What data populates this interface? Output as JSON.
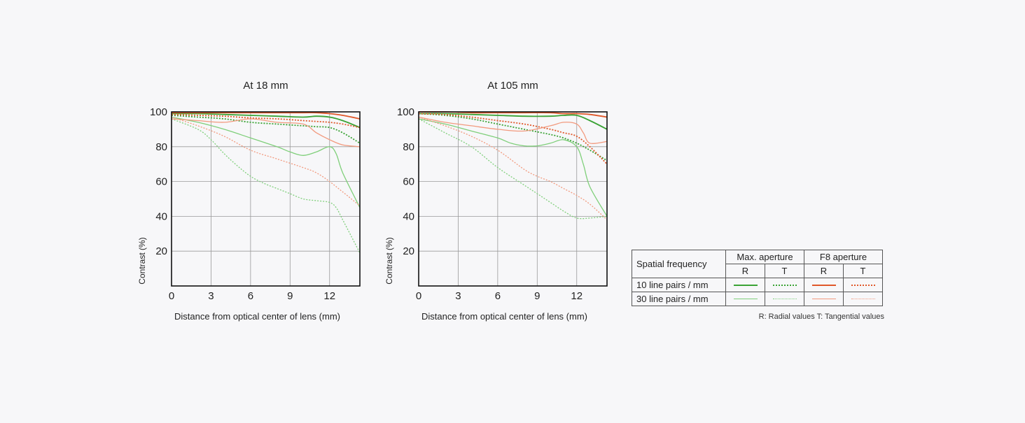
{
  "colors": {
    "max_aperture": "#3aa335",
    "f8_aperture": "#e0582a",
    "max_aperture_light": "#7fcf7a",
    "f8_aperture_light": "#f29a7e",
    "grid": "#9a9a9a",
    "axis": "#111111"
  },
  "chart_data": [
    {
      "type": "line",
      "title": "At 18 mm",
      "xlabel": "Distance from optical center of lens (mm)",
      "ylabel": "Contrast (%)",
      "xlim": [
        0,
        14.3
      ],
      "ylim": [
        0,
        100
      ],
      "xticks": [
        0,
        3,
        6,
        9,
        12
      ],
      "yticks": [
        20,
        40,
        60,
        80,
        100
      ],
      "grid": true,
      "series": [
        {
          "key": "10_r_max",
          "x": [
            0,
            2,
            4,
            6,
            8,
            10,
            11,
            12,
            13,
            14.3
          ],
          "y": [
            99,
            99,
            98.5,
            98,
            97.5,
            97,
            97.5,
            97,
            95,
            91
          ]
        },
        {
          "key": "10_t_max",
          "x": [
            0,
            2,
            4,
            6,
            8,
            10,
            11,
            12,
            13,
            14.3
          ],
          "y": [
            98,
            97,
            96,
            94,
            93,
            92,
            91.5,
            91,
            88,
            82
          ]
        },
        {
          "key": "10_r_f8",
          "x": [
            0,
            2,
            4,
            6,
            8,
            10,
            11,
            12,
            13,
            14.3
          ],
          "y": [
            99.5,
            99.5,
            99.5,
            99.5,
            99.5,
            99.5,
            99.5,
            99,
            98,
            96
          ]
        },
        {
          "key": "10_t_f8",
          "x": [
            0,
            2,
            4,
            6,
            8,
            10,
            11,
            12,
            13,
            14.3
          ],
          "y": [
            98.5,
            98,
            97.5,
            96.5,
            96,
            95,
            94.5,
            94,
            93,
            91
          ]
        },
        {
          "key": "30_r_max",
          "x": [
            0,
            2,
            4,
            6,
            8,
            9,
            10,
            11,
            12,
            12.5,
            13,
            14.3
          ],
          "y": [
            97,
            94,
            90,
            85,
            80,
            77,
            75,
            77,
            80,
            76,
            65,
            45
          ]
        },
        {
          "key": "30_t_max",
          "x": [
            0,
            2,
            3,
            4,
            5,
            6,
            7,
            8,
            9,
            10,
            11,
            12,
            12.5,
            13,
            14.3
          ],
          "y": [
            96,
            90,
            84,
            76,
            69,
            63,
            59,
            56,
            53,
            50,
            49,
            48,
            45,
            38,
            19
          ]
        },
        {
          "key": "30_r_f8",
          "x": [
            0,
            2,
            4,
            6,
            8,
            10,
            11,
            12,
            13,
            14.3
          ],
          "y": [
            96,
            95,
            94,
            96,
            94,
            93,
            88,
            84,
            81,
            80
          ]
        },
        {
          "key": "30_t_f8",
          "x": [
            0,
            2,
            4,
            6,
            8,
            10,
            11,
            12,
            13,
            14.3
          ],
          "y": [
            97,
            92,
            86,
            78,
            73,
            68,
            65,
            60,
            54,
            46
          ]
        }
      ]
    },
    {
      "type": "line",
      "title": "At 105 mm",
      "xlabel": "Distance from optical center of lens (mm)",
      "ylabel": "Contrast (%)",
      "xlim": [
        0,
        14.3
      ],
      "ylim": [
        0,
        100
      ],
      "xticks": [
        0,
        3,
        6,
        9,
        12
      ],
      "yticks": [
        20,
        40,
        60,
        80,
        100
      ],
      "grid": true,
      "series": [
        {
          "key": "10_r_max",
          "x": [
            0,
            2,
            4,
            6,
            8,
            10,
            11,
            12,
            13,
            14.3
          ],
          "y": [
            99,
            99,
            98.5,
            98,
            97.5,
            97.5,
            98,
            98,
            95,
            90
          ]
        },
        {
          "key": "10_t_max",
          "x": [
            0,
            2,
            4,
            6,
            8,
            10,
            11,
            12,
            13,
            14.3
          ],
          "y": [
            99,
            98,
            96,
            93,
            90,
            87,
            85,
            82,
            78,
            72
          ]
        },
        {
          "key": "10_r_f8",
          "x": [
            0,
            2,
            4,
            6,
            8,
            10,
            11,
            12,
            13,
            14.3
          ],
          "y": [
            100,
            100,
            99.5,
            99.5,
            99.5,
            99.5,
            99,
            99,
            98.5,
            97
          ]
        },
        {
          "key": "10_t_f8",
          "x": [
            0,
            2,
            4,
            6,
            8,
            10,
            11,
            12,
            13,
            14.3
          ],
          "y": [
            99,
            98.5,
            97,
            95,
            93,
            90,
            88,
            86,
            80,
            70
          ]
        },
        {
          "key": "30_r_max",
          "x": [
            0,
            2,
            4,
            6,
            7,
            8,
            9,
            10,
            11,
            12,
            12.5,
            13,
            14.3
          ],
          "y": [
            96,
            93,
            89,
            85,
            82,
            80.5,
            80.5,
            82,
            84,
            80,
            70,
            57,
            40
          ]
        },
        {
          "key": "30_t_max",
          "x": [
            0,
            2,
            4,
            6,
            8,
            9,
            10,
            11,
            12,
            13,
            14.3
          ],
          "y": [
            96,
            88,
            80,
            68,
            58,
            53,
            48,
            43,
            39,
            39,
            40
          ]
        },
        {
          "key": "30_r_f8",
          "x": [
            0,
            2,
            4,
            6,
            8,
            10,
            11,
            12,
            12.5,
            13,
            14.3
          ],
          "y": [
            97,
            94,
            92,
            90,
            89,
            92,
            94,
            93,
            88,
            82,
            83
          ]
        },
        {
          "key": "30_t_f8",
          "x": [
            0,
            2,
            4,
            6,
            8,
            9,
            10,
            11,
            12,
            13,
            14.3
          ],
          "y": [
            97,
            92,
            86,
            78,
            67,
            63,
            60,
            56,
            52,
            47,
            38
          ]
        }
      ]
    }
  ],
  "legend": {
    "header_label": "Spatial frequency",
    "groups": [
      "Max. aperture",
      "F8 aperture"
    ],
    "sub": [
      "R",
      "T",
      "R",
      "T"
    ],
    "rows": [
      {
        "label": "10 line pairs / mm"
      },
      {
        "label": "30 line pairs / mm"
      }
    ],
    "note": "R: Radial values  T: Tangential values"
  }
}
